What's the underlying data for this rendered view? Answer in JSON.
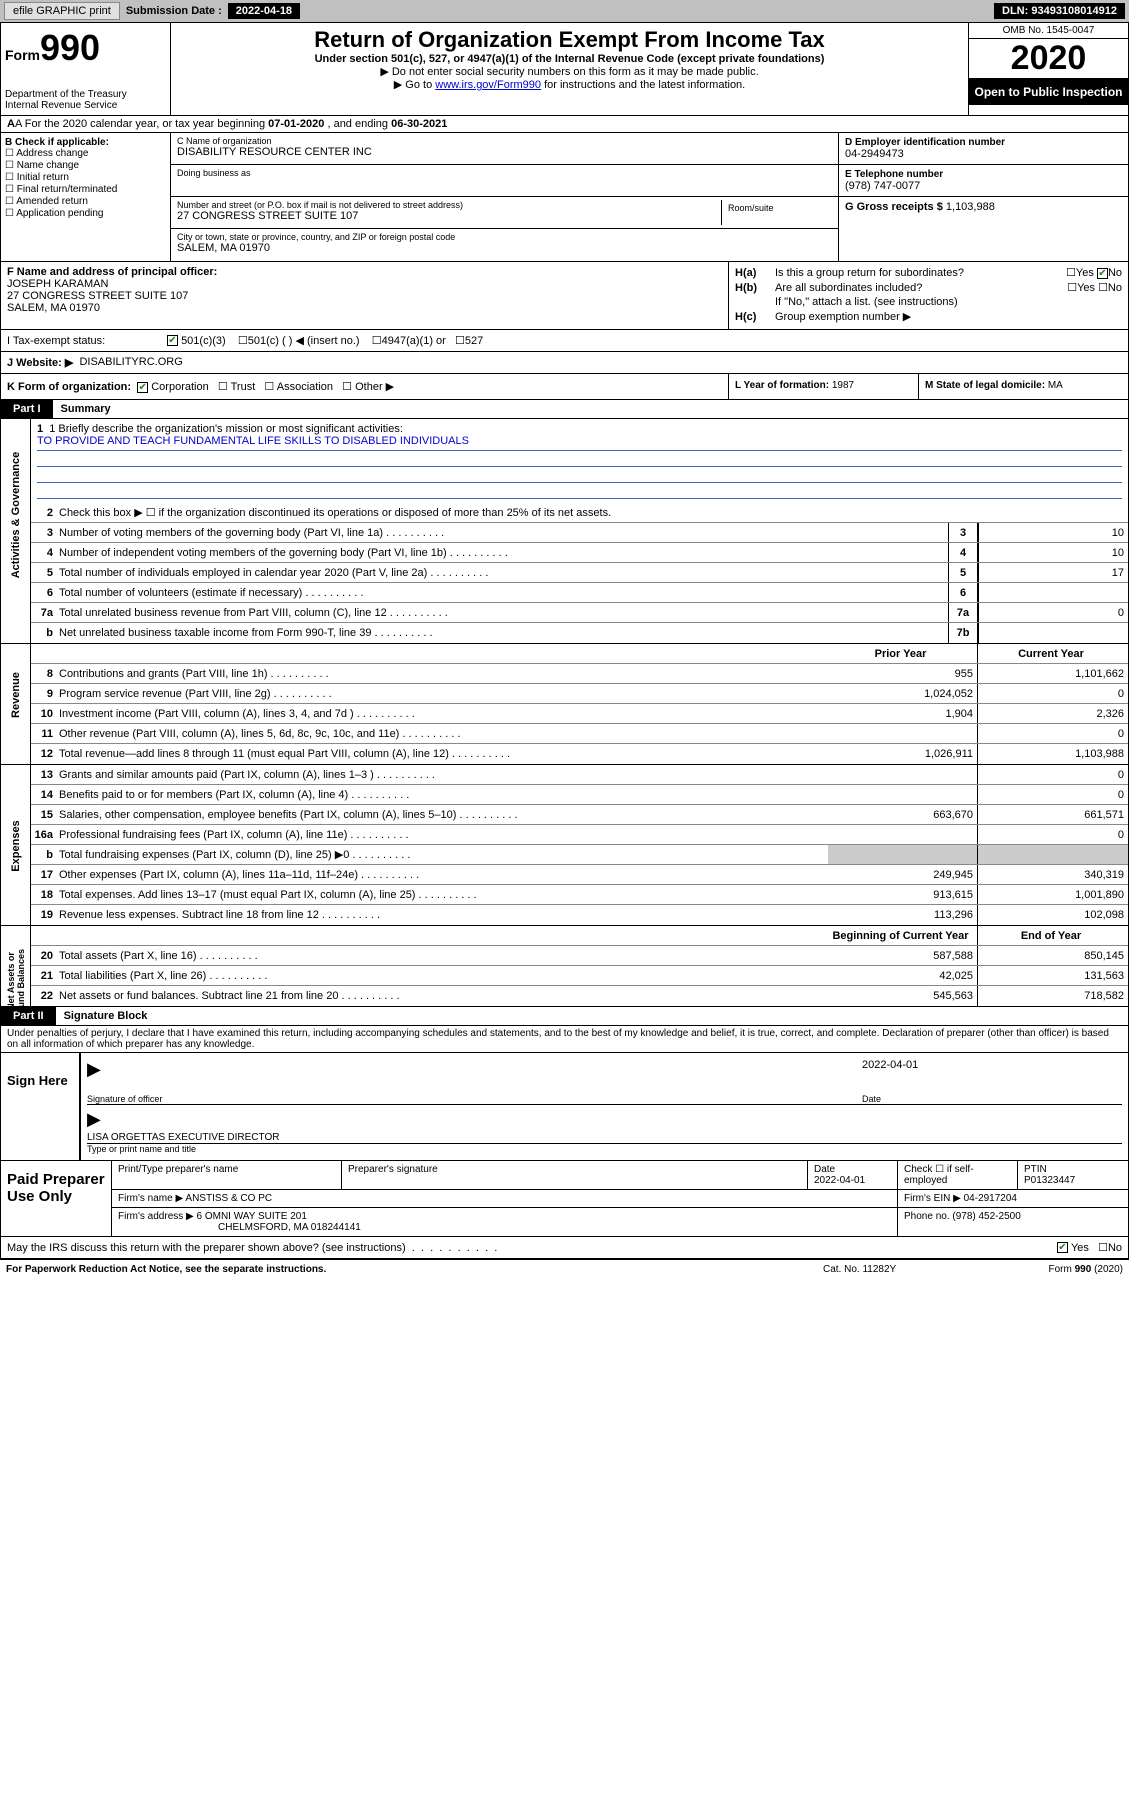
{
  "topbar": {
    "efile": "efile GRAPHIC print",
    "sub_label": "Submission Date : 2022-04-18",
    "dln": "DLN: 93493108014912"
  },
  "header": {
    "form_small": "Form",
    "form_num": "990",
    "dept": "Department of the Treasury\nInternal Revenue Service",
    "title": "Return of Organization Exempt From Income Tax",
    "sub": "Under section 501(c), 527, or 4947(a)(1) of the Internal Revenue Code (except private foundations)",
    "line1": "▶ Do not enter social security numbers on this form as it may be made public.",
    "line2_pre": "▶ Go to ",
    "line2_link": "www.irs.gov/Form990",
    "line2_post": " for instructions and the latest information.",
    "omb": "OMB No. 1545-0047",
    "year": "2020",
    "open": "Open to Public Inspection"
  },
  "rowA": {
    "text_pre": "A For the 2020 calendar year, or tax year beginning ",
    "begin": "07-01-2020",
    "mid": " , and ending ",
    "end": "06-30-2021"
  },
  "colB": {
    "head": "B Check if applicable:",
    "opts": [
      "Address change",
      "Name change",
      "Initial return",
      "Final return/terminated",
      "Amended return",
      "Application pending"
    ]
  },
  "colC": {
    "name_lbl": "C Name of organization",
    "name": "DISABILITY RESOURCE CENTER INC",
    "dba_lbl": "Doing business as",
    "street_lbl": "Number and street (or P.O. box if mail is not delivered to street address)",
    "room_lbl": "Room/suite",
    "street": "27 CONGRESS STREET SUITE 107",
    "city_lbl": "City or town, state or province, country, and ZIP or foreign postal code",
    "city": "SALEM, MA  01970"
  },
  "colD": {
    "ein_lbl": "D Employer identification number",
    "ein": "04-2949473",
    "phone_lbl": "E Telephone number",
    "phone": "(978) 747-0077",
    "gross_lbl": "G Gross receipts $ ",
    "gross": "1,103,988"
  },
  "rowF": {
    "lbl": "F Name and address of principal officer:",
    "name": "JOSEPH KARAMAN",
    "addr1": "27 CONGRESS STREET SUITE 107",
    "addr2": "SALEM, MA  01970"
  },
  "rowH": {
    "ha_lbl": "H(a)",
    "ha_txt": "Is this a group return for subordinates?",
    "hb_lbl": "H(b)",
    "hb_txt": "Are all subordinates included?",
    "hb_note": "If \"No,\" attach a list. (see instructions)",
    "hc_lbl": "H(c)",
    "hc_txt": "Group exemption number ▶"
  },
  "rowI": {
    "lbl": "I     Tax-exempt status:",
    "opt1": "501(c)(3)",
    "opt2": "501(c) (  ) ◀ (insert no.)",
    "opt3": "4947(a)(1) or",
    "opt4": "527"
  },
  "rowJ": {
    "lbl": "J    Website: ▶",
    "val": "DISABILITYRC.ORG"
  },
  "rowK": {
    "lbl": "K Form of organization:",
    "opts": [
      "Corporation",
      "Trust",
      "Association",
      "Other ▶"
    ],
    "l_lbl": "L Year of formation: ",
    "l_val": "1987",
    "m_lbl": "M State of legal domicile: ",
    "m_val": "MA"
  },
  "part1": {
    "label": "Part I",
    "title": "Summary",
    "mission_lbl": "1   Briefly describe the organization's mission or most significant activities:",
    "mission": "TO PROVIDE AND TEACH FUNDAMENTAL LIFE SKILLS TO DISABLED INDIVIDUALS",
    "line2": "Check this box ▶ ☐ if the organization discontinued its operations or disposed of more than 25% of its net assets.",
    "gov_lines": [
      {
        "n": "3",
        "d": "Number of voting members of the governing body (Part VI, line 1a)",
        "box": "3",
        "v": "10"
      },
      {
        "n": "4",
        "d": "Number of independent voting members of the governing body (Part VI, line 1b)",
        "box": "4",
        "v": "10"
      },
      {
        "n": "5",
        "d": "Total number of individuals employed in calendar year 2020 (Part V, line 2a)",
        "box": "5",
        "v": "17"
      },
      {
        "n": "6",
        "d": "Total number of volunteers (estimate if necessary)",
        "box": "6",
        "v": ""
      },
      {
        "n": "7a",
        "d": "Total unrelated business revenue from Part VIII, column (C), line 12",
        "box": "7a",
        "v": "0"
      },
      {
        "n": "b",
        "d": "Net unrelated business taxable income from Form 990-T, line 39",
        "box": "7b",
        "v": ""
      }
    ],
    "col_py": "Prior Year",
    "col_cy": "Current Year",
    "rev_lines": [
      {
        "n": "8",
        "d": "Contributions and grants (Part VIII, line 1h)",
        "py": "955",
        "cy": "1,101,662"
      },
      {
        "n": "9",
        "d": "Program service revenue (Part VIII, line 2g)",
        "py": "1,024,052",
        "cy": "0"
      },
      {
        "n": "10",
        "d": "Investment income (Part VIII, column (A), lines 3, 4, and 7d )",
        "py": "1,904",
        "cy": "2,326"
      },
      {
        "n": "11",
        "d": "Other revenue (Part VIII, column (A), lines 5, 6d, 8c, 9c, 10c, and 11e)",
        "py": "",
        "cy": "0"
      },
      {
        "n": "12",
        "d": "Total revenue—add lines 8 through 11 (must equal Part VIII, column (A), line 12)",
        "py": "1,026,911",
        "cy": "1,103,988"
      }
    ],
    "exp_lines": [
      {
        "n": "13",
        "d": "Grants and similar amounts paid (Part IX, column (A), lines 1–3 )",
        "py": "",
        "cy": "0"
      },
      {
        "n": "14",
        "d": "Benefits paid to or for members (Part IX, column (A), line 4)",
        "py": "",
        "cy": "0"
      },
      {
        "n": "15",
        "d": "Salaries, other compensation, employee benefits (Part IX, column (A), lines 5–10)",
        "py": "663,670",
        "cy": "661,571"
      },
      {
        "n": "16a",
        "d": "Professional fundraising fees (Part IX, column (A), line 11e)",
        "py": "",
        "cy": "0"
      },
      {
        "n": "b",
        "d": "Total fundraising expenses (Part IX, column (D), line 25) ▶0",
        "py": "grey",
        "cy": "grey"
      },
      {
        "n": "17",
        "d": "Other expenses (Part IX, column (A), lines 11a–11d, 11f–24e)",
        "py": "249,945",
        "cy": "340,319"
      },
      {
        "n": "18",
        "d": "Total expenses. Add lines 13–17 (must equal Part IX, column (A), line 25)",
        "py": "913,615",
        "cy": "1,001,890"
      },
      {
        "n": "19",
        "d": "Revenue less expenses. Subtract line 18 from line 12",
        "py": "113,296",
        "cy": "102,098"
      }
    ],
    "col_boy": "Beginning of Current Year",
    "col_eoy": "End of Year",
    "net_lines": [
      {
        "n": "20",
        "d": "Total assets (Part X, line 16)",
        "py": "587,588",
        "cy": "850,145"
      },
      {
        "n": "21",
        "d": "Total liabilities (Part X, line 26)",
        "py": "42,025",
        "cy": "131,563"
      },
      {
        "n": "22",
        "d": "Net assets or fund balances. Subtract line 21 from line 20",
        "py": "545,563",
        "cy": "718,582"
      }
    ]
  },
  "part2": {
    "label": "Part II",
    "title": "Signature Block",
    "perjury": "Under penalties of perjury, I declare that I have examined this return, including accompanying schedules and statements, and to the best of my knowledge and belief, it is true, correct, and complete. Declaration of preparer (other than officer) is based on all information of which preparer has any knowledge."
  },
  "sign": {
    "here": "Sign Here",
    "sig_lbl": "Signature of officer",
    "date_lbl": "Date",
    "date": "2022-04-01",
    "officer": "LISA ORGETTAS  EXECUTIVE DIRECTOR",
    "type_lbl": "Type or print name and title"
  },
  "prep": {
    "here": "Paid Preparer Use Only",
    "h1": "Print/Type preparer's name",
    "h2": "Preparer's signature",
    "h3": "Date",
    "h3v": "2022-04-01",
    "h4": "Check ☐ if self-employed",
    "h5": "PTIN",
    "h5v": "P01323447",
    "firm_lbl": "Firm's name    ▶",
    "firm": "ANSTISS & CO PC",
    "ein_lbl": "Firm's EIN ▶",
    "ein": "04-2917204",
    "addr_lbl": "Firm's address ▶",
    "addr1": "6 OMNI WAY SUITE 201",
    "addr2": "CHELMSFORD, MA  018244141",
    "phone_lbl": "Phone no. ",
    "phone": "(978) 452-2500"
  },
  "discuss": {
    "txt": "May the IRS discuss this return with the preparer shown above? (see instructions)",
    "yes": "Yes",
    "no": "No"
  },
  "footer": {
    "f1": "For Paperwork Reduction Act Notice, see the separate instructions.",
    "f2": "Cat. No. 11282Y",
    "f3": "Form 990 (2020)"
  }
}
